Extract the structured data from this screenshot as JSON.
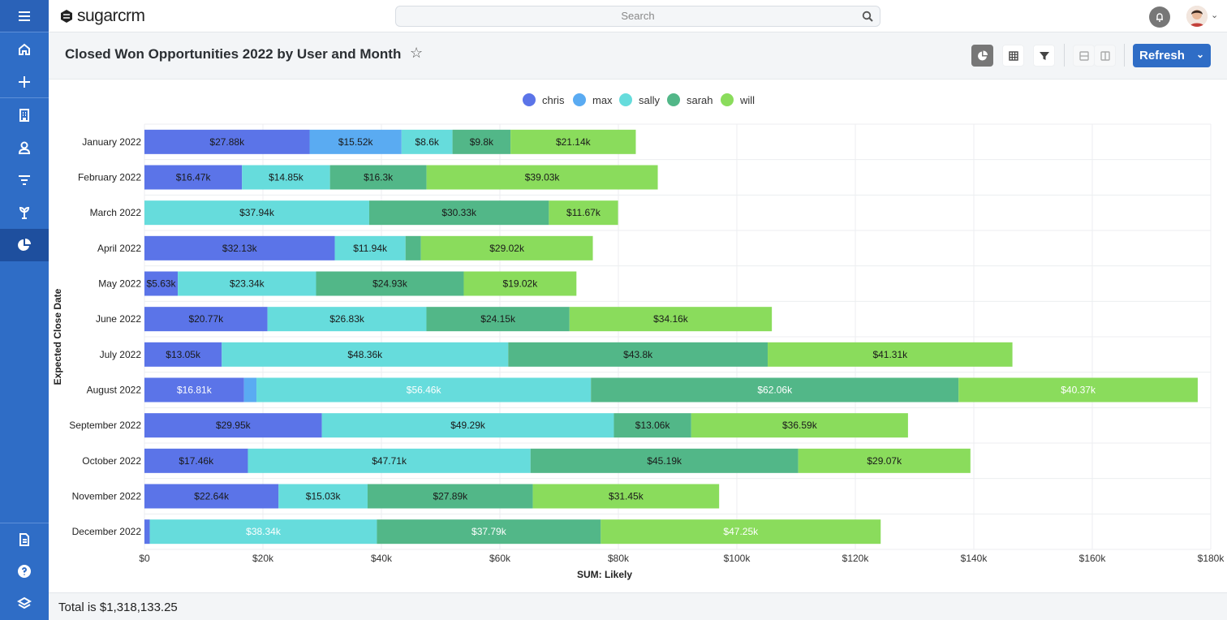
{
  "app": {
    "logo": "sugarcrm",
    "search_placeholder": "Search"
  },
  "sidebar": {
    "items": [
      {
        "name": "menu",
        "icon": "hamburger-icon"
      },
      {
        "name": "home",
        "icon": "home-icon"
      },
      {
        "name": "create",
        "icon": "plus-icon"
      },
      {
        "name": "accounts",
        "icon": "building-icon"
      },
      {
        "name": "contacts",
        "icon": "person-icon"
      },
      {
        "name": "leads",
        "icon": "filter-icon"
      },
      {
        "name": "opportunities",
        "icon": "plant-icon"
      },
      {
        "name": "reports",
        "icon": "pie-chart-icon",
        "active": true
      },
      {
        "name": "documents",
        "icon": "document-icon"
      },
      {
        "name": "help",
        "icon": "help-icon"
      },
      {
        "name": "layers",
        "icon": "layers-icon"
      }
    ]
  },
  "header": {
    "title": "Closed Won Opportunities 2022 by User and Month",
    "refresh_label": "Refresh"
  },
  "footer": {
    "total": "Total is $1,318,133.25"
  },
  "colors": {
    "sidebar": "#2f6dc6",
    "accent": "#2f6dc6"
  },
  "chart_data": {
    "type": "bar",
    "orientation": "horizontal",
    "stacked": true,
    "legend_position": "top",
    "grid": true,
    "xlabel": "SUM: Likely",
    "ylabel": "Expected Close Date",
    "xlim": [
      0,
      180000
    ],
    "x_ticks": [
      "$0",
      "$20k",
      "$40k",
      "$60k",
      "$80k",
      "$100k",
      "$120k",
      "$140k",
      "$160k",
      "$180k"
    ],
    "categories": [
      "January 2022",
      "February 2022",
      "March 2022",
      "April 2022",
      "May 2022",
      "June 2022",
      "July 2022",
      "August 2022",
      "September 2022",
      "October 2022",
      "November 2022",
      "December 2022"
    ],
    "series": [
      {
        "name": "chris",
        "color": "#5b74e8",
        "values": [
          27880,
          16470,
          0,
          32130,
          5630,
          20770,
          13050,
          16810,
          29950,
          17460,
          22640,
          900
        ]
      },
      {
        "name": "max",
        "color": "#5aabf2",
        "values": [
          15520,
          0,
          0,
          0,
          0,
          0,
          0,
          2100,
          0,
          0,
          0,
          0
        ]
      },
      {
        "name": "sally",
        "color": "#66dcdc",
        "values": [
          8600,
          14850,
          37940,
          11940,
          23340,
          26830,
          48360,
          56460,
          49290,
          47710,
          15030,
          38340
        ]
      },
      {
        "name": "sarah",
        "color": "#52b788",
        "values": [
          9800,
          16300,
          30330,
          2600,
          24930,
          24150,
          43800,
          62060,
          13060,
          45190,
          27890,
          37790
        ]
      },
      {
        "name": "will",
        "color": "#8adc5c",
        "values": [
          21140,
          39030,
          11670,
          29020,
          19020,
          34160,
          41310,
          40370,
          36590,
          29070,
          31450,
          47250
        ]
      }
    ],
    "labels": [
      [
        "$27.88k",
        "$15.52k",
        "$8.6k",
        "$9.8k",
        "$21.14k"
      ],
      [
        "$16.47k",
        "",
        "$14.85k",
        "$16.3k",
        "$39.03k"
      ],
      [
        "",
        "",
        "$37.94k",
        "$30.33k",
        "$11.67k"
      ],
      [
        "$32.13k",
        "",
        "$11.94k",
        "",
        "$29.02k"
      ],
      [
        "$5.63k",
        "",
        "$23.34k",
        "$24.93k",
        "$19.02k"
      ],
      [
        "$20.77k",
        "",
        "$26.83k",
        "$24.15k",
        "$34.16k"
      ],
      [
        "$13.05k",
        "",
        "$48.36k",
        "$43.8k",
        "$41.31k"
      ],
      [
        "$16.81k",
        "",
        "$56.46k",
        "$62.06k",
        "$40.37k"
      ],
      [
        "$29.95k",
        "",
        "$49.29k",
        "$13.06k",
        "$36.59k"
      ],
      [
        "$17.46k",
        "",
        "$47.71k",
        "$45.19k",
        "$29.07k"
      ],
      [
        "$22.64k",
        "",
        "$15.03k",
        "$27.89k",
        "$31.45k"
      ],
      [
        "",
        "",
        "$38.34k",
        "$37.79k",
        "$47.25k"
      ]
    ]
  }
}
